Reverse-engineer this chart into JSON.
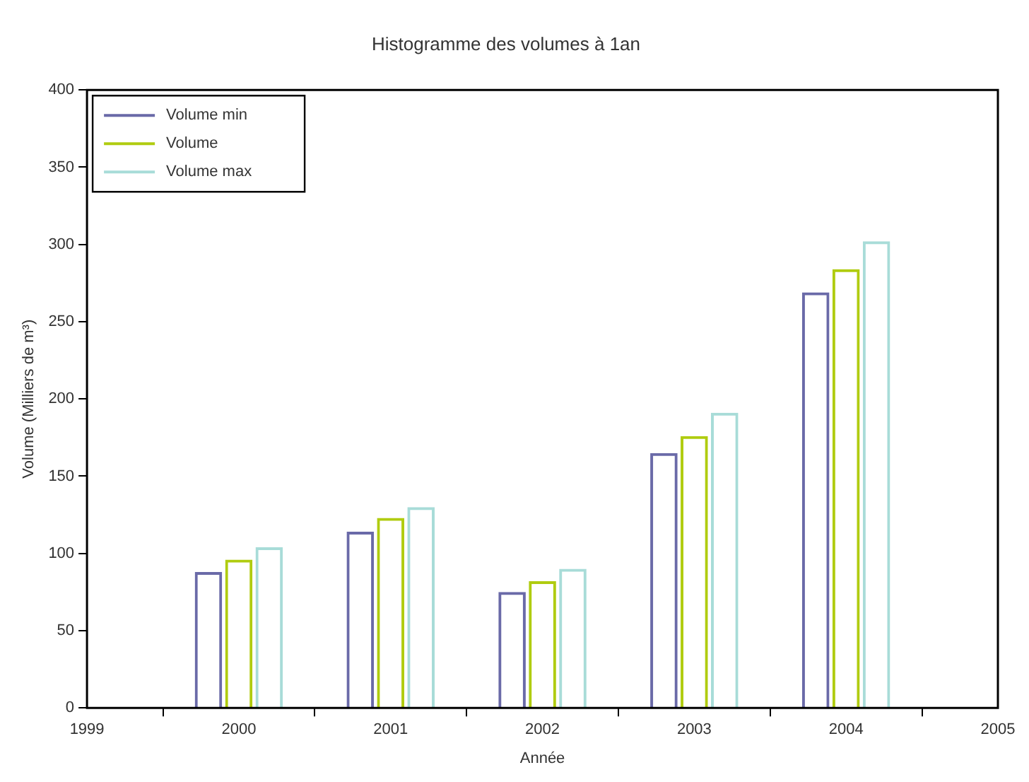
{
  "chart_data": {
    "type": "bar",
    "title": "Histogramme des volumes à 1an",
    "xlabel": "Année",
    "ylabel": "Volume (Milliers de m³)",
    "x": [
      2000,
      2001,
      2002,
      2003,
      2004
    ],
    "series": [
      {
        "name": "Volume min",
        "color": "#6a6aa8",
        "values": [
          88,
          114,
          75,
          165,
          269
        ]
      },
      {
        "name": "Volume",
        "color": "#b0cc10",
        "values": [
          96,
          123,
          82,
          176,
          284
        ]
      },
      {
        "name": "Volume max",
        "color": "#a8dcd8",
        "values": [
          104,
          130,
          90,
          191,
          302
        ]
      }
    ],
    "xlim": [
      1999,
      2005
    ],
    "xticks": [
      1999,
      2000,
      2001,
      2002,
      2003,
      2004,
      2005
    ],
    "ylim": [
      0,
      400
    ],
    "yticks": [
      0,
      50,
      100,
      150,
      200,
      250,
      300,
      350,
      400
    ],
    "grid": false,
    "legend": "top left"
  }
}
